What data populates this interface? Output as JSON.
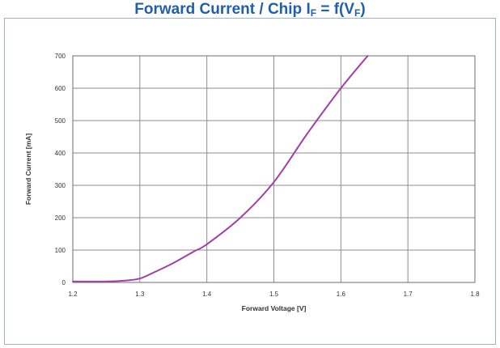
{
  "chart_data": {
    "type": "line",
    "title": {
      "main": "Forward Current / Chip I",
      "main_sub": "F",
      "mid": " = f(V",
      "mid_sub": "F",
      "end": ")"
    },
    "xlabel": "Forward Voltage [V]",
    "ylabel": "Forward Current [mA]",
    "xlim": [
      1.2,
      1.8
    ],
    "ylim": [
      0,
      700
    ],
    "xticks": [
      "1.2",
      "1.3",
      "1.4",
      "1.5",
      "1.6",
      "1.7",
      "1.8"
    ],
    "yticks": [
      "0",
      "100",
      "200",
      "300",
      "400",
      "500",
      "600",
      "700"
    ],
    "grid": true,
    "series": [
      {
        "color": "#a040a8",
        "x": [
          1.2,
          1.25,
          1.28,
          1.3,
          1.32,
          1.35,
          1.38,
          1.4,
          1.45,
          1.5,
          1.55,
          1.6,
          1.64
        ],
        "y": [
          3,
          3,
          6,
          12,
          30,
          60,
          95,
          118,
          200,
          310,
          460,
          600,
          700
        ]
      }
    ]
  }
}
